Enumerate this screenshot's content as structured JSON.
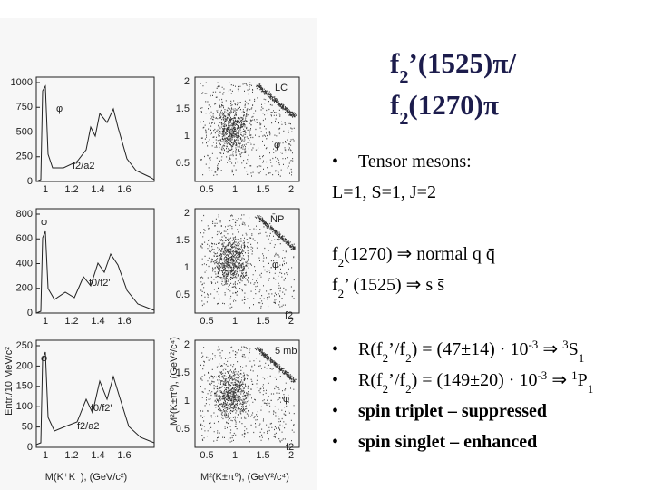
{
  "figure": {
    "rows": [
      {
        "hist": {
          "yticks": [
            "1000",
            "750",
            "500",
            "250",
            "0"
          ],
          "xticks": [
            "1",
            "1.2",
            "1.4",
            "1.6"
          ],
          "labels": [
            "φ",
            "f2/a2"
          ]
        },
        "dalitz": {
          "yticks": [
            "2",
            "1.5",
            "1",
            "0.5"
          ],
          "xticks": [
            "0.5",
            "1",
            "1.5",
            "2"
          ],
          "labels": [
            "LC",
            "φ"
          ]
        }
      },
      {
        "hist": {
          "yticks": [
            "800",
            "600",
            "400",
            "200",
            "0"
          ],
          "xticks": [
            "1",
            "1.2",
            "1.4",
            "1.6"
          ],
          "labels": [
            "φ",
            "f0/f2'"
          ]
        },
        "dalitz": {
          "yticks": [
            "2",
            "1.5",
            "1",
            "0.5"
          ],
          "xticks": [
            "0.5",
            "1",
            "1.5",
            "2"
          ],
          "labels": [
            "N̄P",
            "φ",
            "f2"
          ]
        }
      },
      {
        "hist": {
          "yticks": [
            "250",
            "200",
            "150",
            "100",
            "50",
            "0"
          ],
          "xticks": [
            "1",
            "1.2",
            "1.4",
            "1.6"
          ],
          "labels": [
            "φ",
            "f0/f2'",
            "f2/a2"
          ]
        },
        "dalitz": {
          "yticks": [
            "2",
            "1.5",
            "1",
            "0.5"
          ],
          "xticks": [
            "0.5",
            "1",
            "1.5",
            "2"
          ],
          "labels": [
            "5 mb",
            "φ",
            "f2"
          ]
        }
      }
    ],
    "hist_x_title": "M(K⁺K⁻), (GeV/c²)",
    "hist_y_title": "Entr./10 MeV/c²",
    "dalitz_x_title": "M²(K±π⁰), (GeV²/c⁴)",
    "dalitz_y_title": "M²(K±π⁰), (GeV²/c⁴)"
  },
  "title": [
    [
      {
        "text": "f"
      },
      {
        "sub": "2"
      },
      {
        "text": "’(1525)π/"
      }
    ],
    [
      {
        "text": "f"
      },
      {
        "sub": "2"
      },
      {
        "text": "(1270)π"
      }
    ]
  ],
  "body": [
    {
      "bullet": "•",
      "segments": [
        {
          "text": "Tensor mesons:"
        }
      ]
    },
    {
      "segments": [
        {
          "text": "L=1, S=1, J=2"
        }
      ]
    },
    {
      "segments": [
        {
          "text": "f"
        },
        {
          "sub": "2"
        },
        {
          "text": "(1270) ⇒ normal q q̄"
        }
      ]
    },
    {
      "segments": [
        {
          "text": "f"
        },
        {
          "sub": "2"
        },
        {
          "text": "’ (1525) ⇒ s s̄"
        }
      ]
    },
    {
      "bullet": "•",
      "segments": [
        {
          "text": "R(f"
        },
        {
          "sub": "2"
        },
        {
          "text": "’/f"
        },
        {
          "sub": "2"
        },
        {
          "text": ") = (47±14) · 10"
        },
        {
          "sup": "-3"
        },
        {
          "text": " ⇒ "
        },
        {
          "sup": "3"
        },
        {
          "text": "S"
        },
        {
          "sub": "1"
        }
      ]
    },
    {
      "bullet": "•",
      "segments": [
        {
          "text": "R(f"
        },
        {
          "sub": "2"
        },
        {
          "text": "’/f"
        },
        {
          "sub": "2"
        },
        {
          "text": ") = (149±20) · 10"
        },
        {
          "sup": "-3"
        },
        {
          "text": " ⇒ "
        },
        {
          "sup": "1"
        },
        {
          "text": "P"
        },
        {
          "sub": "1"
        }
      ]
    },
    {
      "bullet": "•",
      "color": "#a8781a",
      "segments": [
        {
          "text": " spin triplet – suppressed"
        }
      ]
    },
    {
      "bullet": "•",
      "color": "#a8781a",
      "segments": [
        {
          "text": "spin singlet – enhanced"
        }
      ]
    }
  ]
}
